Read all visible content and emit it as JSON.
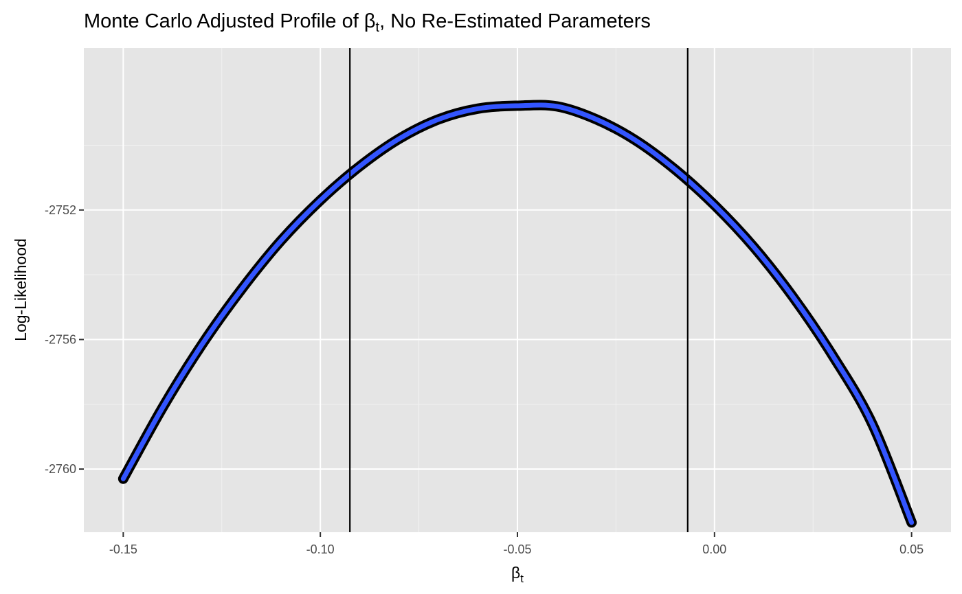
{
  "chart_data": {
    "type": "line",
    "title": {
      "prefix": "Monte Carlo Adjusted Profile of ",
      "symbol": "β",
      "subscript": "t",
      "suffix": ", No Re-Estimated Parameters"
    },
    "xlabel": {
      "symbol": "β",
      "subscript": "t"
    },
    "ylabel": "Log-Likelihood",
    "xlim": [
      -0.16,
      0.06
    ],
    "ylim": [
      -2761.95,
      -2747.0
    ],
    "x_ticks": [
      -0.15,
      -0.1,
      -0.05,
      0.0,
      0.05
    ],
    "x_tick_labels": [
      "-0.15",
      "-0.10",
      "-0.05",
      "0.00",
      "0.05"
    ],
    "y_ticks": [
      -2752,
      -2756,
      -2760
    ],
    "y_tick_labels": [
      "-2752",
      "-2756",
      "-2760"
    ],
    "grid": true,
    "panel_background": "#e5e5e5",
    "vertical_lines": [
      -0.0925,
      -0.0068
    ],
    "series": [
      {
        "style": "black points",
        "color": "#000000",
        "x": [
          -0.15,
          -0.14,
          -0.13,
          -0.12,
          -0.11,
          -0.1,
          -0.09,
          -0.08,
          -0.07,
          -0.06,
          -0.05,
          -0.04,
          -0.03,
          -0.02,
          -0.01,
          0.0,
          0.01,
          0.02,
          0.03,
          0.04,
          0.05
        ],
        "y": [
          -2760.3,
          -2758.1,
          -2756.15,
          -2754.45,
          -2752.95,
          -2751.7,
          -2750.65,
          -2749.8,
          -2749.2,
          -2748.87,
          -2748.78,
          -2748.8,
          -2749.2,
          -2749.85,
          -2750.75,
          -2751.85,
          -2753.15,
          -2754.7,
          -2756.5,
          -2758.6,
          -2761.65
        ]
      },
      {
        "style": "blue smooth line",
        "color": "#3355ff",
        "x": [
          -0.15,
          -0.14,
          -0.13,
          -0.12,
          -0.11,
          -0.1,
          -0.09,
          -0.08,
          -0.07,
          -0.06,
          -0.05,
          -0.04,
          -0.03,
          -0.02,
          -0.01,
          0.0,
          0.01,
          0.02,
          0.03,
          0.04,
          0.05
        ],
        "y": [
          -2760.3,
          -2758.1,
          -2756.15,
          -2754.45,
          -2752.95,
          -2751.7,
          -2750.65,
          -2749.8,
          -2749.2,
          -2748.87,
          -2748.78,
          -2748.8,
          -2749.2,
          -2749.85,
          -2750.75,
          -2751.85,
          -2753.15,
          -2754.7,
          -2756.5,
          -2758.6,
          -2761.65
        ]
      }
    ]
  }
}
